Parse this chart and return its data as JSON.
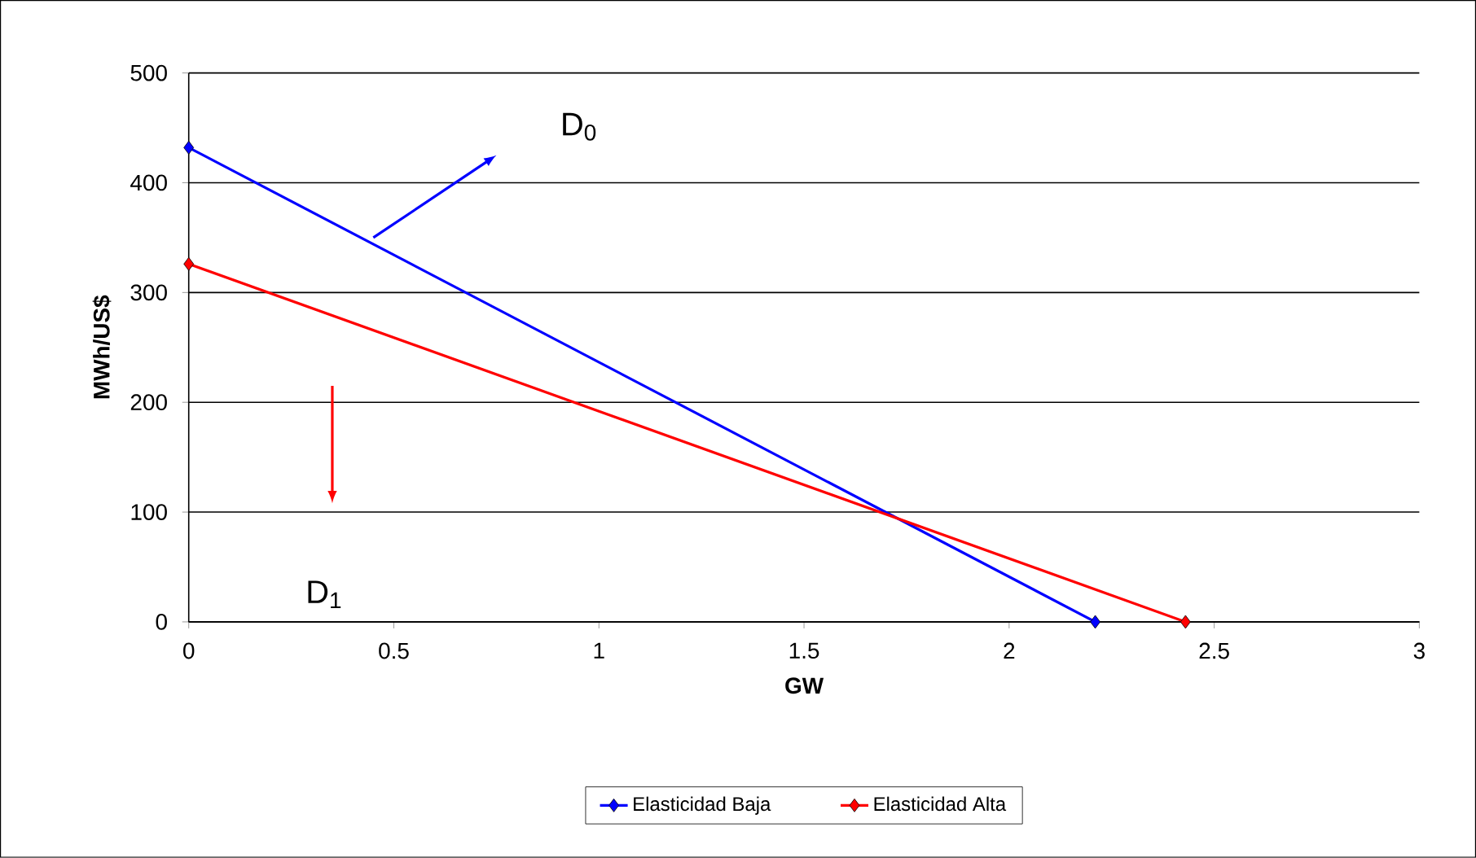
{
  "chart_data": {
    "type": "line",
    "xlabel": "GW",
    "ylabel": "MWh/US$",
    "xlim": [
      0,
      3
    ],
    "xticks": [
      0,
      0.5,
      1,
      1.5,
      2,
      2.5,
      3
    ],
    "ylim": [
      0,
      500
    ],
    "yticks": [
      0,
      100,
      200,
      300,
      400,
      500
    ],
    "grid": "y",
    "legend": "bottom",
    "marker": "diamond",
    "line_style": "solid",
    "series": [
      {
        "name": "Elasticidad Baja",
        "color": "#0000ff",
        "x": [
          0,
          2.21
        ],
        "values": [
          432,
          0
        ]
      },
      {
        "name": "Elasticidad Alta",
        "color": "#ff0000",
        "x": [
          0,
          2.43
        ],
        "values": [
          326,
          0
        ]
      }
    ],
    "annotations": [
      "D$_{0}$",
      "D$_{1}$"
    ]
  }
}
